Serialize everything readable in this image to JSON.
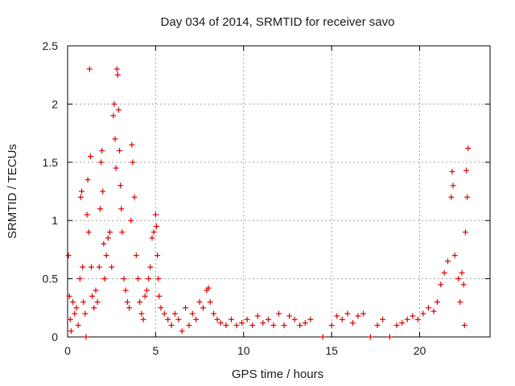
{
  "chart_data": {
    "type": "scatter",
    "title": "Day 034 of 2014, SRMTID for receiver savo",
    "xlabel": "GPS time / hours",
    "ylabel": "SRMTID / TECUs",
    "xlim": [
      0,
      24
    ],
    "ylim": [
      0,
      2.5
    ],
    "xticks": [
      0,
      5,
      10,
      15,
      20
    ],
    "xtick_labels": [
      "0",
      "5",
      "10",
      "15",
      "20"
    ],
    "yticks": [
      0,
      0.5,
      1,
      1.5,
      2,
      2.5
    ],
    "ytick_labels": [
      "0",
      "0.5",
      "1",
      "1.5",
      "2",
      "2.5"
    ],
    "grid": true,
    "marker": "+",
    "series": [
      {
        "name": "SRMTID",
        "color": "#e00000",
        "points": [
          [
            0.05,
            0.7
          ],
          [
            0.1,
            0.35
          ],
          [
            0.15,
            0.15
          ],
          [
            0.2,
            0.05
          ],
          [
            0.3,
            0.3
          ],
          [
            0.4,
            0.2
          ],
          [
            0.5,
            0.25
          ],
          [
            0.6,
            0.1
          ],
          [
            0.7,
            0.5
          ],
          [
            0.75,
            1.2
          ],
          [
            0.8,
            1.25
          ],
          [
            0.85,
            0.6
          ],
          [
            0.9,
            0.3
          ],
          [
            1.0,
            0.2
          ],
          [
            1.05,
            0.0
          ],
          [
            1.1,
            1.05
          ],
          [
            1.15,
            1.35
          ],
          [
            1.2,
            0.9
          ],
          [
            1.25,
            2.3
          ],
          [
            1.3,
            1.55
          ],
          [
            1.35,
            0.6
          ],
          [
            1.4,
            0.35
          ],
          [
            1.5,
            0.25
          ],
          [
            1.6,
            0.4
          ],
          [
            1.7,
            0.3
          ],
          [
            1.8,
            0.6
          ],
          [
            1.85,
            1.1
          ],
          [
            1.9,
            1.5
          ],
          [
            1.95,
            1.6
          ],
          [
            2.0,
            1.25
          ],
          [
            2.05,
            0.8
          ],
          [
            2.1,
            0.5
          ],
          [
            2.2,
            0.7
          ],
          [
            2.3,
            0.85
          ],
          [
            2.4,
            0.9
          ],
          [
            2.5,
            0.6
          ],
          [
            2.6,
            1.9
          ],
          [
            2.65,
            2.0
          ],
          [
            2.7,
            1.7
          ],
          [
            2.75,
            1.45
          ],
          [
            2.8,
            2.3
          ],
          [
            2.85,
            2.25
          ],
          [
            2.9,
            1.95
          ],
          [
            2.95,
            1.6
          ],
          [
            3.0,
            1.3
          ],
          [
            3.05,
            1.1
          ],
          [
            3.1,
            0.9
          ],
          [
            3.2,
            0.5
          ],
          [
            3.3,
            0.4
          ],
          [
            3.4,
            0.3
          ],
          [
            3.5,
            0.25
          ],
          [
            3.6,
            1.0
          ],
          [
            3.65,
            1.65
          ],
          [
            3.7,
            1.5
          ],
          [
            3.8,
            1.2
          ],
          [
            3.9,
            0.7
          ],
          [
            4.0,
            0.5
          ],
          [
            4.1,
            0.3
          ],
          [
            4.2,
            0.2
          ],
          [
            4.3,
            0.15
          ],
          [
            4.4,
            0.35
          ],
          [
            4.5,
            0.4
          ],
          [
            4.6,
            0.5
          ],
          [
            4.7,
            0.6
          ],
          [
            4.8,
            0.85
          ],
          [
            4.9,
            0.9
          ],
          [
            5.0,
            1.05
          ],
          [
            5.05,
            0.95
          ],
          [
            5.1,
            0.7
          ],
          [
            5.15,
            0.5
          ],
          [
            5.2,
            0.35
          ],
          [
            5.3,
            0.25
          ],
          [
            5.5,
            0.2
          ],
          [
            5.7,
            0.15
          ],
          [
            5.9,
            0.1
          ],
          [
            6.1,
            0.2
          ],
          [
            6.3,
            0.15
          ],
          [
            6.5,
            0.05
          ],
          [
            6.7,
            0.25
          ],
          [
            6.9,
            0.1
          ],
          [
            7.1,
            0.2
          ],
          [
            7.3,
            0.15
          ],
          [
            7.5,
            0.3
          ],
          [
            7.7,
            0.25
          ],
          [
            7.9,
            0.4
          ],
          [
            8.0,
            0.42
          ],
          [
            8.1,
            0.3
          ],
          [
            8.3,
            0.2
          ],
          [
            8.5,
            0.15
          ],
          [
            8.7,
            0.12
          ],
          [
            9.0,
            0.1
          ],
          [
            9.3,
            0.15
          ],
          [
            9.6,
            0.1
          ],
          [
            9.9,
            0.12
          ],
          [
            10.2,
            0.15
          ],
          [
            10.5,
            0.1
          ],
          [
            10.8,
            0.18
          ],
          [
            11.1,
            0.12
          ],
          [
            11.4,
            0.15
          ],
          [
            11.7,
            0.1
          ],
          [
            12.0,
            0.2
          ],
          [
            12.3,
            0.1
          ],
          [
            12.6,
            0.18
          ],
          [
            12.9,
            0.15
          ],
          [
            13.2,
            0.1
          ],
          [
            13.5,
            0.12
          ],
          [
            13.8,
            0.15
          ],
          [
            14.5,
            0.0
          ],
          [
            15.0,
            0.1
          ],
          [
            15.3,
            0.18
          ],
          [
            15.6,
            0.15
          ],
          [
            15.9,
            0.2
          ],
          [
            16.2,
            0.12
          ],
          [
            16.5,
            0.18
          ],
          [
            16.8,
            0.2
          ],
          [
            17.2,
            0.0
          ],
          [
            17.6,
            0.1
          ],
          [
            17.9,
            0.15
          ],
          [
            18.3,
            0.0
          ],
          [
            18.7,
            0.1
          ],
          [
            19.0,
            0.12
          ],
          [
            19.3,
            0.15
          ],
          [
            19.6,
            0.18
          ],
          [
            19.9,
            0.15
          ],
          [
            20.2,
            0.2
          ],
          [
            20.5,
            0.25
          ],
          [
            20.8,
            0.22
          ],
          [
            21.0,
            0.3
          ],
          [
            21.2,
            0.45
          ],
          [
            21.4,
            0.55
          ],
          [
            21.6,
            0.65
          ],
          [
            21.8,
            1.2
          ],
          [
            21.85,
            1.42
          ],
          [
            21.9,
            1.3
          ],
          [
            22.0,
            0.7
          ],
          [
            22.2,
            0.5
          ],
          [
            22.3,
            0.3
          ],
          [
            22.4,
            0.55
          ],
          [
            22.5,
            0.45
          ],
          [
            22.55,
            0.1
          ],
          [
            22.6,
            0.9
          ],
          [
            22.65,
            1.43
          ],
          [
            22.7,
            1.2
          ],
          [
            22.75,
            1.62
          ]
        ]
      }
    ]
  }
}
